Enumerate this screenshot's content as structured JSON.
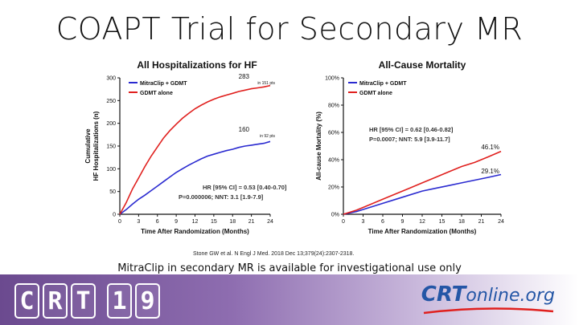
{
  "slide": {
    "title": "COAPT Trial for Secondary MR",
    "citation": "Stone GW et al. N Engl J Med. 2018 Dec 13;379(24):2307-2318.",
    "subtitle": "MitraClip in secondary MR is available for investigational use only"
  },
  "footer": {
    "logo_letters": [
      "C",
      "R",
      "T",
      "1",
      "9"
    ],
    "site_brand": "CRT",
    "site_rest": "online.org"
  },
  "colors": {
    "mitraclip": "#2a2ad0",
    "gdmt": "#e0201e",
    "footer_purple": "#6b4a8f"
  },
  "chart_data": [
    {
      "type": "line",
      "title": "All Hospitalizations for HF",
      "xlabel": "Time After Randomization (Months)",
      "ylabel": "Cumulative HF Hospitalizations (n)",
      "xlim": [
        0,
        24
      ],
      "ylim": [
        0,
        300
      ],
      "xticks": [
        0,
        3,
        6,
        9,
        12,
        15,
        18,
        21,
        24
      ],
      "yticks": [
        0,
        50,
        100,
        150,
        200,
        250,
        300
      ],
      "yticklabels": [
        "0",
        "50",
        "100",
        "150",
        "200",
        "250",
        "300"
      ],
      "legend_position": "top-left",
      "series": [
        {
          "name": "MitraClip + GDMT",
          "color": "#2a2ad0",
          "x": [
            0,
            1,
            2,
            3,
            4,
            5,
            6,
            7,
            8,
            9,
            10,
            11,
            12,
            13,
            14,
            15,
            16,
            17,
            18,
            19,
            20,
            21,
            22,
            23,
            24
          ],
          "y": [
            0,
            10,
            22,
            33,
            42,
            52,
            62,
            72,
            82,
            92,
            100,
            108,
            115,
            122,
            128,
            132,
            136,
            140,
            143,
            147,
            150,
            152,
            154,
            156,
            160
          ]
        },
        {
          "name": "GDMT alone",
          "color": "#e0201e",
          "x": [
            0,
            1,
            2,
            3,
            4,
            5,
            6,
            7,
            8,
            9,
            10,
            11,
            12,
            13,
            14,
            15,
            16,
            17,
            18,
            19,
            20,
            21,
            22,
            23,
            24
          ],
          "y": [
            0,
            25,
            55,
            80,
            105,
            128,
            148,
            168,
            184,
            198,
            211,
            222,
            232,
            240,
            247,
            253,
            258,
            262,
            266,
            270,
            273,
            276,
            278,
            280,
            283
          ]
        }
      ],
      "annotations": [
        {
          "text": "283",
          "sub": "in 151 pts"
        },
        {
          "text": "160",
          "sub": "in 92 pts"
        },
        {
          "text": "HR [95% CI] = 0.53 [0.40-0.70]"
        },
        {
          "text": "P=0.000006; NNT: 3.1 [1.9-7.9]"
        }
      ]
    },
    {
      "type": "line",
      "title": "All-Cause Mortality",
      "xlabel": "Time After Randomization (Months)",
      "ylabel": "All-cause Mortality (%)",
      "xlim": [
        0,
        24
      ],
      "ylim": [
        0,
        100
      ],
      "xticks": [
        0,
        3,
        6,
        9,
        12,
        15,
        18,
        21,
        24
      ],
      "yticks": [
        0,
        20,
        40,
        60,
        80,
        100
      ],
      "yticklabels": [
        "0%",
        "20%",
        "40%",
        "60%",
        "80%",
        "100%"
      ],
      "legend_position": "top-left",
      "series": [
        {
          "name": "MitraClip + GDMT",
          "color": "#2a2ad0",
          "x": [
            0,
            2,
            4,
            6,
            8,
            10,
            12,
            14,
            16,
            18,
            20,
            22,
            24
          ],
          "y": [
            0,
            2,
            5,
            8,
            11,
            14,
            17,
            19,
            21,
            23,
            25,
            27,
            29.1
          ]
        },
        {
          "name": "GDMT alone",
          "color": "#e0201e",
          "x": [
            0,
            2,
            4,
            6,
            8,
            10,
            12,
            14,
            16,
            18,
            20,
            22,
            24
          ],
          "y": [
            0,
            3,
            7,
            11,
            15,
            19,
            23,
            27,
            31,
            35,
            38,
            42,
            46.1
          ]
        }
      ],
      "annotations": [
        {
          "text": "46.1%"
        },
        {
          "text": "29.1%"
        },
        {
          "text": "HR [95% CI] = 0.62 [0.46-0.82]"
        },
        {
          "text": "P=0.0007; NNT: 5.9 [3.9-11.7]"
        }
      ]
    }
  ]
}
